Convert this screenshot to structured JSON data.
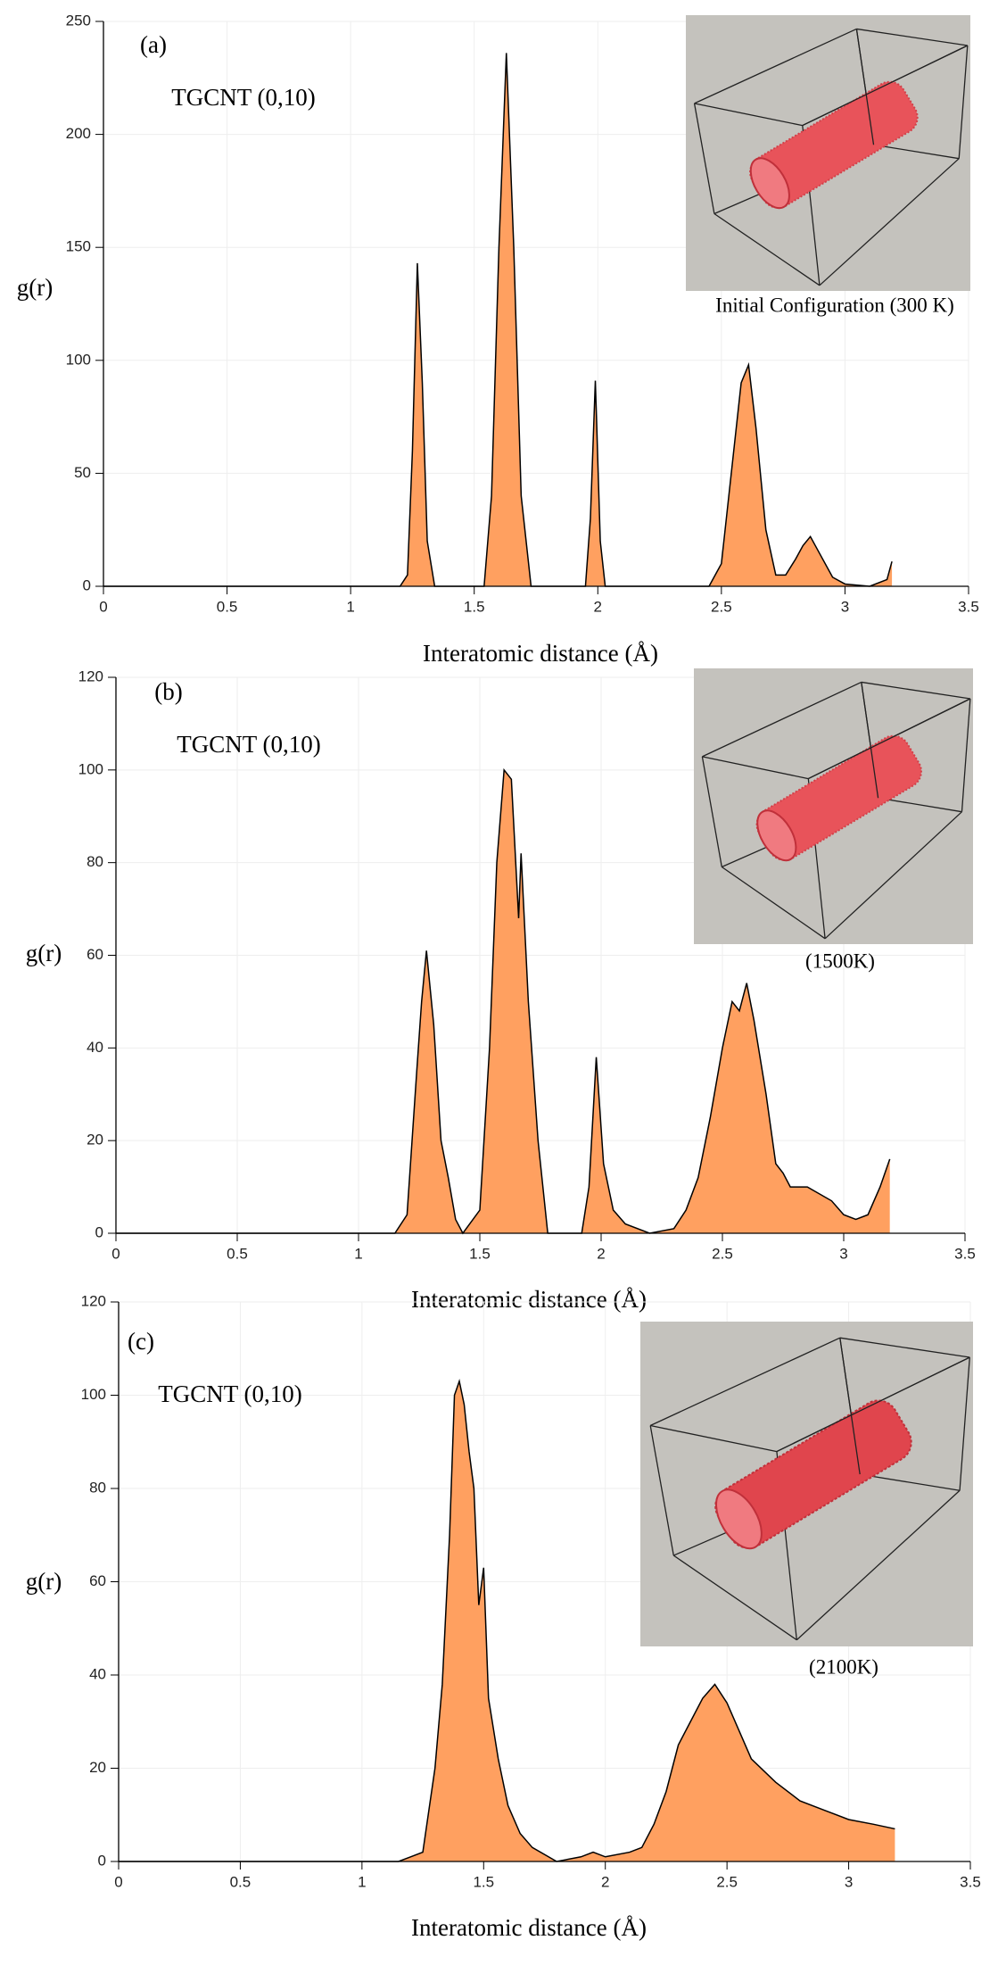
{
  "chart_data": [
    {
      "type": "area",
      "panel_label": "(a)",
      "annotation": "TGCNT (0,10)",
      "inset_caption": "Initial Configuration (300 K)",
      "xlabel": "Interatomic distance (Å)",
      "ylabel": "g(r)",
      "color": "#ffa060",
      "grid": true,
      "xlim": [
        0,
        3.5
      ],
      "xticks": [
        0,
        0.5,
        1,
        1.5,
        2,
        2.5,
        3,
        3.5
      ],
      "ylim": [
        0,
        250
      ],
      "yticks": [
        0,
        50,
        100,
        150,
        200,
        250
      ],
      "x": [
        0,
        1.2,
        1.23,
        1.25,
        1.27,
        1.29,
        1.31,
        1.34,
        1.54,
        1.57,
        1.6,
        1.63,
        1.66,
        1.69,
        1.73,
        1.95,
        1.97,
        1.99,
        2.01,
        2.03,
        2.45,
        2.5,
        2.55,
        2.58,
        2.61,
        2.64,
        2.68,
        2.72,
        2.76,
        2.8,
        2.83,
        2.86,
        2.9,
        2.95,
        3.0,
        3.1,
        3.17,
        3.19
      ],
      "values": [
        0,
        0,
        5,
        60,
        143,
        90,
        20,
        0,
        0,
        40,
        150,
        236,
        150,
        40,
        0,
        0,
        30,
        91,
        20,
        0,
        0,
        10,
        60,
        90,
        98,
        70,
        25,
        5,
        5,
        12,
        18,
        22,
        14,
        4,
        1,
        0,
        3,
        11
      ]
    },
    {
      "type": "area",
      "panel_label": "(b)",
      "annotation": "TGCNT (0,10)",
      "inset_caption": "(1500K)",
      "xlabel": "Interatomic distance (Å)",
      "ylabel": "g(r)",
      "color": "#ffa060",
      "grid": true,
      "xlim": [
        0,
        3.5
      ],
      "xticks": [
        0,
        0.5,
        1,
        1.5,
        2,
        2.5,
        3,
        3.5
      ],
      "ylim": [
        0,
        120
      ],
      "yticks": [
        0,
        20,
        40,
        60,
        80,
        100,
        120
      ],
      "x": [
        0,
        1.15,
        1.2,
        1.24,
        1.26,
        1.28,
        1.31,
        1.34,
        1.37,
        1.4,
        1.43,
        1.5,
        1.54,
        1.57,
        1.6,
        1.63,
        1.66,
        1.67,
        1.7,
        1.74,
        1.78,
        1.92,
        1.95,
        1.98,
        2.01,
        2.05,
        2.1,
        2.2,
        2.3,
        2.35,
        2.4,
        2.45,
        2.5,
        2.54,
        2.57,
        2.6,
        2.63,
        2.68,
        2.72,
        2.75,
        2.78,
        2.85,
        2.95,
        3.0,
        3.05,
        3.1,
        3.15,
        3.19
      ],
      "values": [
        0,
        0,
        4,
        35,
        50,
        61,
        45,
        20,
        12,
        3,
        0,
        5,
        40,
        80,
        100,
        98,
        68,
        82,
        50,
        20,
        0,
        0,
        10,
        38,
        15,
        5,
        2,
        0,
        1,
        5,
        12,
        25,
        40,
        50,
        48,
        54,
        46,
        30,
        15,
        13,
        10,
        10,
        7,
        4,
        3,
        4,
        10,
        16
      ]
    },
    {
      "type": "area",
      "panel_label": "(c)",
      "annotation": "TGCNT (0,10)",
      "inset_caption": "(2100K)",
      "xlabel": "Interatomic distance (Å)",
      "ylabel": "g(r)",
      "color": "#ffa060",
      "grid": true,
      "xlim": [
        0,
        3.5
      ],
      "xticks": [
        0,
        0.5,
        1,
        1.5,
        2,
        2.5,
        3,
        3.5
      ],
      "ylim": [
        0,
        120
      ],
      "yticks": [
        0,
        20,
        40,
        60,
        80,
        100,
        120
      ],
      "x": [
        0,
        1.15,
        1.2,
        1.25,
        1.3,
        1.33,
        1.36,
        1.38,
        1.4,
        1.42,
        1.44,
        1.46,
        1.48,
        1.5,
        1.52,
        1.56,
        1.6,
        1.65,
        1.7,
        1.8,
        1.9,
        1.95,
        2.0,
        2.1,
        2.15,
        2.2,
        2.25,
        2.3,
        2.35,
        2.4,
        2.45,
        2.5,
        2.55,
        2.6,
        2.7,
        2.8,
        2.9,
        3.0,
        3.1,
        3.19
      ],
      "values": [
        0,
        0,
        1,
        2,
        20,
        38,
        70,
        100,
        103,
        98,
        88,
        80,
        55,
        63,
        35,
        22,
        12,
        6,
        3,
        0,
        1,
        2,
        1,
        2,
        3,
        8,
        15,
        25,
        30,
        35,
        38,
        34,
        28,
        22,
        17,
        13,
        11,
        9,
        8,
        7
      ]
    }
  ]
}
